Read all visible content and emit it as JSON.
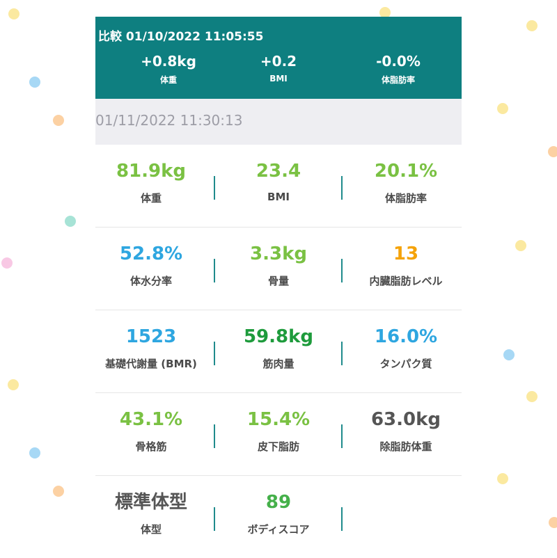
{
  "colors": {
    "header_bg": "#0e7f80",
    "green": "#7ac143",
    "blue": "#2ea6e0",
    "dark_green": "#1e9b3c",
    "orange": "#f5a30a",
    "gray": "#555555",
    "mid_green": "#45b04a"
  },
  "compare": {
    "title": "比較 01/10/2022 11:05:55",
    "items": [
      {
        "value": "+0.8kg",
        "label": "体重"
      },
      {
        "value": "+0.2",
        "label": "BMI"
      },
      {
        "value": "-0.0%",
        "label": "体脂肪率"
      }
    ]
  },
  "date": "01/11/2022 11:30:13",
  "metrics": [
    [
      {
        "value": "81.9kg",
        "label": "体重",
        "color": "#7ac143"
      },
      {
        "value": "23.4",
        "label": "BMI",
        "color": "#7ac143"
      },
      {
        "value": "20.1%",
        "label": "体脂肪率",
        "color": "#7ac143"
      }
    ],
    [
      {
        "value": "52.8%",
        "label": "体水分率",
        "color": "#2ea6e0"
      },
      {
        "value": "3.3kg",
        "label": "骨量",
        "color": "#7ac143"
      },
      {
        "value": "13",
        "label": "内臓脂肪レベル",
        "color": "#f5a30a"
      }
    ],
    [
      {
        "value": "1523",
        "label": "基礎代謝量 (BMR)",
        "color": "#2ea6e0"
      },
      {
        "value": "59.8kg",
        "label": "筋肉量",
        "color": "#1e9b3c"
      },
      {
        "value": "16.0%",
        "label": "タンパク質",
        "color": "#2ea6e0"
      }
    ],
    [
      {
        "value": "43.1%",
        "label": "骨格筋",
        "color": "#7ac143"
      },
      {
        "value": "15.4%",
        "label": "皮下脂肪",
        "color": "#7ac143"
      },
      {
        "value": "63.0kg",
        "label": "除脂肪体重",
        "color": "#555555"
      }
    ],
    [
      {
        "value": "標準体型",
        "label": "体型",
        "color": "#555555"
      },
      {
        "value": "89",
        "label": "ボディスコア",
        "color": "#45b04a"
      }
    ]
  ]
}
